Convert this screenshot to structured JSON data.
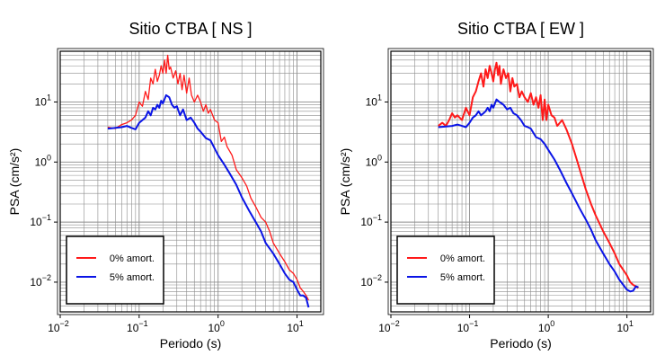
{
  "colors": {
    "red": "#ff1a1a",
    "blue": "#0a14e6",
    "grid": "#8c8c8c",
    "frame": "#000000"
  },
  "chart_data": [
    {
      "type": "line",
      "title": "Sitio CTBA [ NS ]",
      "xlabel": "Periodo (s)",
      "ylabel": "PSA (cm/s²)",
      "xscale": "log",
      "yscale": "log",
      "xlim": [
        0.01,
        20
      ],
      "ylim": [
        0.0032,
        70
      ],
      "grid": true,
      "legend": "bottom-left",
      "xticks": [
        {
          "value": 0.01,
          "base": "10",
          "exp": "−2"
        },
        {
          "value": 0.1,
          "base": "10",
          "exp": "−1"
        },
        {
          "value": 1,
          "base": "10",
          "exp": "0"
        },
        {
          "value": 10,
          "base": "10",
          "exp": "1"
        }
      ],
      "yticks": [
        {
          "value": 0.01,
          "base": "10",
          "exp": "−2"
        },
        {
          "value": 0.1,
          "base": "10",
          "exp": "−1"
        },
        {
          "value": 1,
          "base": "10",
          "exp": "0"
        },
        {
          "value": 10,
          "base": "10",
          "exp": "1"
        }
      ],
      "series": [
        {
          "name": "0% amort.",
          "color": "#ff1a1a",
          "width": 1.3,
          "x": [
            0.04,
            0.05,
            0.06,
            0.07,
            0.08,
            0.09,
            0.1,
            0.11,
            0.12,
            0.13,
            0.14,
            0.15,
            0.16,
            0.17,
            0.18,
            0.19,
            0.2,
            0.21,
            0.22,
            0.23,
            0.24,
            0.25,
            0.27,
            0.29,
            0.31,
            0.33,
            0.35,
            0.37,
            0.4,
            0.43,
            0.46,
            0.5,
            0.55,
            0.6,
            0.65,
            0.7,
            0.75,
            0.8,
            0.9,
            1.0,
            1.1,
            1.2,
            1.3,
            1.5,
            1.7,
            2.0,
            2.3,
            2.6,
            3.0,
            3.5,
            4.0,
            4.5,
            5.0,
            6.0,
            7.0,
            8.0,
            9.0,
            10.0,
            11.0,
            12.0,
            13.0,
            14.0
          ],
          "y": [
            3.8,
            3.6,
            4.2,
            4.5,
            5.0,
            6.0,
            10.0,
            8.5,
            15.0,
            11.0,
            25.0,
            20.0,
            35.0,
            22.0,
            28.0,
            40.0,
            30.0,
            50.0,
            30.0,
            60.0,
            35.0,
            38.0,
            25.0,
            33.0,
            20.0,
            30.0,
            16.0,
            28.0,
            14.0,
            25.0,
            13.0,
            10.0,
            13.0,
            10.0,
            7.0,
            9.0,
            6.5,
            7.5,
            5.0,
            4.5,
            2.2,
            2.6,
            1.8,
            1.3,
            0.75,
            0.55,
            0.4,
            0.25,
            0.18,
            0.12,
            0.1,
            0.07,
            0.045,
            0.03,
            0.022,
            0.016,
            0.014,
            0.011,
            0.008,
            0.007,
            0.006,
            0.005
          ]
        },
        {
          "name": "5% amort.",
          "color": "#0a14e6",
          "width": 2,
          "x": [
            0.04,
            0.05,
            0.06,
            0.07,
            0.08,
            0.09,
            0.1,
            0.11,
            0.12,
            0.13,
            0.14,
            0.15,
            0.16,
            0.17,
            0.18,
            0.19,
            0.2,
            0.22,
            0.24,
            0.26,
            0.28,
            0.3,
            0.33,
            0.36,
            0.4,
            0.45,
            0.5,
            0.55,
            0.6,
            0.7,
            0.8,
            0.9,
            1.0,
            1.2,
            1.4,
            1.7,
            2.0,
            2.5,
            3.0,
            3.5,
            4.0,
            5.0,
            6.0,
            7.0,
            8.0,
            9.0,
            10.0,
            11.0,
            12.0,
            13.0,
            14.0
          ],
          "y": [
            3.6,
            3.7,
            3.8,
            4.0,
            3.7,
            3.5,
            4.5,
            5.0,
            5.5,
            7.0,
            6.0,
            8.0,
            7.5,
            9.0,
            8.0,
            10.5,
            9.5,
            13.0,
            12.0,
            9.0,
            8.0,
            8.5,
            6.0,
            7.5,
            5.0,
            5.5,
            4.5,
            3.6,
            3.2,
            2.5,
            2.3,
            1.7,
            1.3,
            0.9,
            0.65,
            0.42,
            0.26,
            0.15,
            0.1,
            0.07,
            0.045,
            0.03,
            0.02,
            0.014,
            0.011,
            0.01,
            0.0075,
            0.006,
            0.006,
            0.0055,
            0.0038
          ]
        }
      ]
    },
    {
      "type": "line",
      "title": "Sitio CTBA [ EW ]",
      "xlabel": "Periodo (s)",
      "ylabel": "PSA (cm/s²)",
      "xscale": "log",
      "yscale": "log",
      "xlim": [
        0.01,
        20
      ],
      "ylim": [
        0.0032,
        70
      ],
      "grid": true,
      "legend": "bottom-left",
      "xticks": [
        {
          "value": 0.01,
          "base": "10",
          "exp": "−2"
        },
        {
          "value": 0.1,
          "base": "10",
          "exp": "−1"
        },
        {
          "value": 1,
          "base": "10",
          "exp": "0"
        },
        {
          "value": 10,
          "base": "10",
          "exp": "1"
        }
      ],
      "yticks": [
        {
          "value": 0.01,
          "base": "10",
          "exp": "−2"
        },
        {
          "value": 0.1,
          "base": "10",
          "exp": "−1"
        },
        {
          "value": 1,
          "base": "10",
          "exp": "0"
        },
        {
          "value": 10,
          "base": "10",
          "exp": "1"
        }
      ],
      "series": [
        {
          "name": "0% amort.",
          "color": "#ff1a1a",
          "width": 2,
          "x": [
            0.04,
            0.045,
            0.05,
            0.055,
            0.06,
            0.065,
            0.07,
            0.08,
            0.09,
            0.1,
            0.11,
            0.12,
            0.13,
            0.14,
            0.15,
            0.16,
            0.17,
            0.18,
            0.19,
            0.2,
            0.21,
            0.22,
            0.23,
            0.24,
            0.25,
            0.27,
            0.29,
            0.31,
            0.33,
            0.35,
            0.37,
            0.4,
            0.43,
            0.46,
            0.5,
            0.55,
            0.6,
            0.65,
            0.7,
            0.75,
            0.8,
            0.85,
            0.9,
            0.95,
            1.0,
            1.1,
            1.2,
            1.3,
            1.5,
            1.7,
            2.0,
            2.3,
            2.7,
            3.0,
            3.5,
            4.0,
            5.0,
            6.0,
            7.0,
            8.0,
            10.0,
            11.0,
            12.0,
            13.0,
            14.0
          ],
          "y": [
            4.0,
            4.5,
            4.0,
            5.0,
            6.5,
            5.5,
            6.0,
            5.0,
            8.0,
            6.0,
            12.0,
            15.0,
            22.0,
            30.0,
            18.0,
            35.0,
            25.0,
            40.0,
            30.0,
            22.0,
            35.0,
            45.0,
            28.0,
            40.0,
            20.0,
            35.0,
            25.0,
            30.0,
            15.0,
            25.0,
            18.0,
            20.0,
            12.0,
            15.0,
            12.0,
            10.0,
            14.0,
            9.0,
            12.0,
            8.0,
            13.0,
            5.0,
            11.0,
            5.0,
            9.0,
            6.0,
            5.5,
            4.0,
            5.0,
            3.5,
            2.0,
            1.1,
            0.55,
            0.35,
            0.2,
            0.13,
            0.07,
            0.045,
            0.03,
            0.02,
            0.013,
            0.01,
            0.009,
            0.0085,
            0.008
          ]
        },
        {
          "name": "5% amort.",
          "color": "#0a14e6",
          "width": 2,
          "x": [
            0.04,
            0.05,
            0.06,
            0.07,
            0.08,
            0.09,
            0.1,
            0.11,
            0.12,
            0.13,
            0.14,
            0.15,
            0.16,
            0.17,
            0.18,
            0.19,
            0.2,
            0.22,
            0.24,
            0.27,
            0.3,
            0.33,
            0.36,
            0.4,
            0.45,
            0.5,
            0.55,
            0.6,
            0.7,
            0.8,
            0.9,
            1.0,
            1.2,
            1.4,
            1.7,
            2.0,
            2.5,
            3.0,
            3.5,
            4.0,
            5.0,
            6.0,
            7.0,
            8.0,
            9.0,
            10.0,
            11.0,
            12.0,
            13.0,
            14.0
          ],
          "y": [
            3.8,
            3.9,
            4.0,
            4.2,
            4.0,
            3.8,
            4.5,
            5.5,
            6.0,
            7.0,
            6.0,
            6.5,
            7.0,
            8.0,
            7.0,
            9.0,
            8.0,
            11.0,
            10.0,
            9.0,
            7.5,
            8.0,
            6.5,
            6.0,
            5.0,
            4.0,
            3.8,
            3.6,
            2.6,
            2.4,
            2.0,
            1.6,
            1.1,
            0.75,
            0.45,
            0.3,
            0.17,
            0.11,
            0.075,
            0.05,
            0.03,
            0.02,
            0.015,
            0.011,
            0.009,
            0.0075,
            0.007,
            0.0072,
            0.0085,
            0.0082
          ]
        }
      ]
    }
  ]
}
